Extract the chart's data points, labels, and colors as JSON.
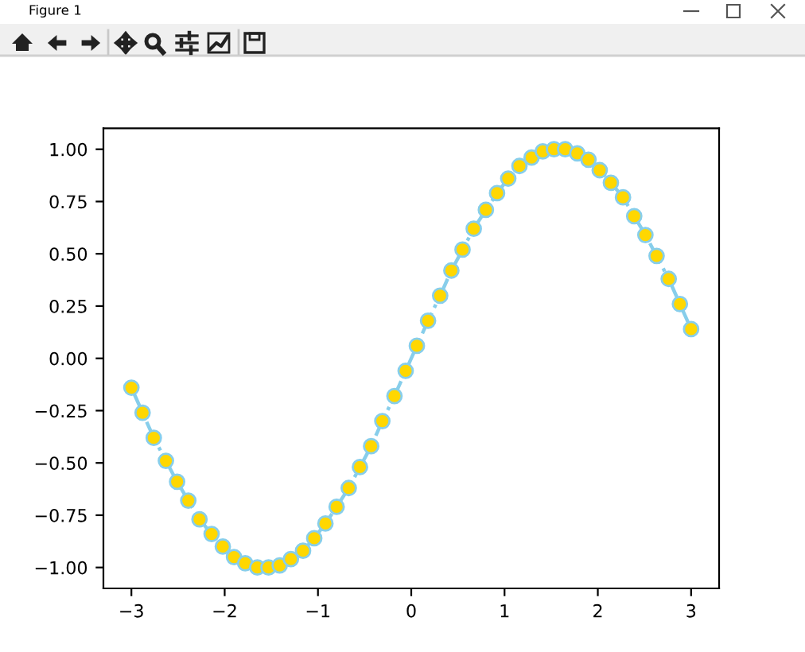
{
  "chart_data": {
    "type": "line",
    "annotations": [
      "Figure 1"
    ],
    "x": [
      -3.0,
      -2.88,
      -2.76,
      -2.63,
      -2.51,
      -2.39,
      -2.27,
      -2.14,
      -2.02,
      -1.9,
      -1.78,
      -1.65,
      -1.53,
      -1.41,
      -1.29,
      -1.16,
      -1.04,
      -0.92,
      -0.8,
      -0.67,
      -0.55,
      -0.43,
      -0.31,
      -0.18,
      -0.06,
      0.06,
      0.18,
      0.31,
      0.43,
      0.55,
      0.67,
      0.8,
      0.92,
      1.04,
      1.16,
      1.29,
      1.41,
      1.53,
      1.65,
      1.78,
      1.9,
      2.02,
      2.14,
      2.27,
      2.39,
      2.51,
      2.63,
      2.76,
      2.88,
      3.0
    ],
    "series": [
      {
        "color": "#87ceeb",
        "colors": [
          "#ffd700",
          "#ffd700",
          "#ffd700",
          "#ffd700",
          "#ffd700",
          "#ffd700",
          "#ffd700",
          "#ffd700",
          "#ffd700",
          "#ffd700",
          "#ffd700",
          "#ffd700",
          "#ffd700",
          "#ffd700",
          "#ffd700",
          "#ffd700",
          "#ffd700",
          "#ffd700",
          "#ffd700",
          "#ffd700",
          "#ffd700",
          "#ffd700",
          "#ffd700",
          "#ffd700",
          "#ffd700",
          "#ffd700",
          "#ffd700",
          "#ffd700",
          "#ffd700",
          "#ffd700",
          "#ffd700",
          "#ffd700",
          "#ffd700",
          "#ffd700",
          "#ffd700",
          "#ffd700",
          "#ffd700",
          "#ffd700",
          "#ffd700",
          "#ffd700",
          "#ffd700",
          "#ffd700",
          "#ffd700",
          "#ffd700",
          "#ffd700",
          "#ffd700",
          "#ffd700",
          "#ffd700",
          "#ffd700",
          "#ffd700"
        ],
        "values": [
          -0.14,
          -0.26,
          -0.38,
          -0.49,
          -0.59,
          -0.68,
          -0.77,
          -0.84,
          -0.9,
          -0.95,
          -0.98,
          -1.0,
          -1.0,
          -0.99,
          -0.96,
          -0.92,
          -0.86,
          -0.79,
          -0.71,
          -0.62,
          -0.52,
          -0.42,
          -0.3,
          -0.18,
          -0.06,
          0.06,
          0.18,
          0.3,
          0.42,
          0.52,
          0.62,
          0.71,
          0.79,
          0.86,
          0.92,
          0.96,
          0.99,
          1.0,
          1.0,
          0.98,
          0.95,
          0.9,
          0.84,
          0.77,
          0.68,
          0.59,
          0.49,
          0.38,
          0.26,
          0.14
        ]
      }
    ],
    "xlim": [
      -3.3,
      3.3
    ],
    "ylim": [
      -1.1,
      1.1
    ],
    "xticks": [
      {
        "value": -3,
        "label": "−3"
      },
      {
        "value": -2,
        "label": "−2"
      },
      {
        "value": -1,
        "label": "−1"
      },
      0,
      1,
      2,
      3
    ],
    "yticks": [
      {
        "value": -1,
        "label": "−1.00"
      },
      {
        "value": -0.75,
        "label": "−0.75"
      },
      {
        "value": -0.5,
        "label": "−0.50"
      },
      {
        "value": -0.25,
        "label": "−0.25"
      },
      {
        "value": 0,
        "label": "0.00"
      },
      {
        "value": 0.25,
        "label": "0.25"
      },
      {
        "value": 0.5,
        "label": "0.50"
      },
      {
        "value": 0.75,
        "label": "0.75"
      },
      {
        "value": 1,
        "label": "1.00"
      }
    ],
    "marker": "circle",
    "line_style": "dashed"
  }
}
